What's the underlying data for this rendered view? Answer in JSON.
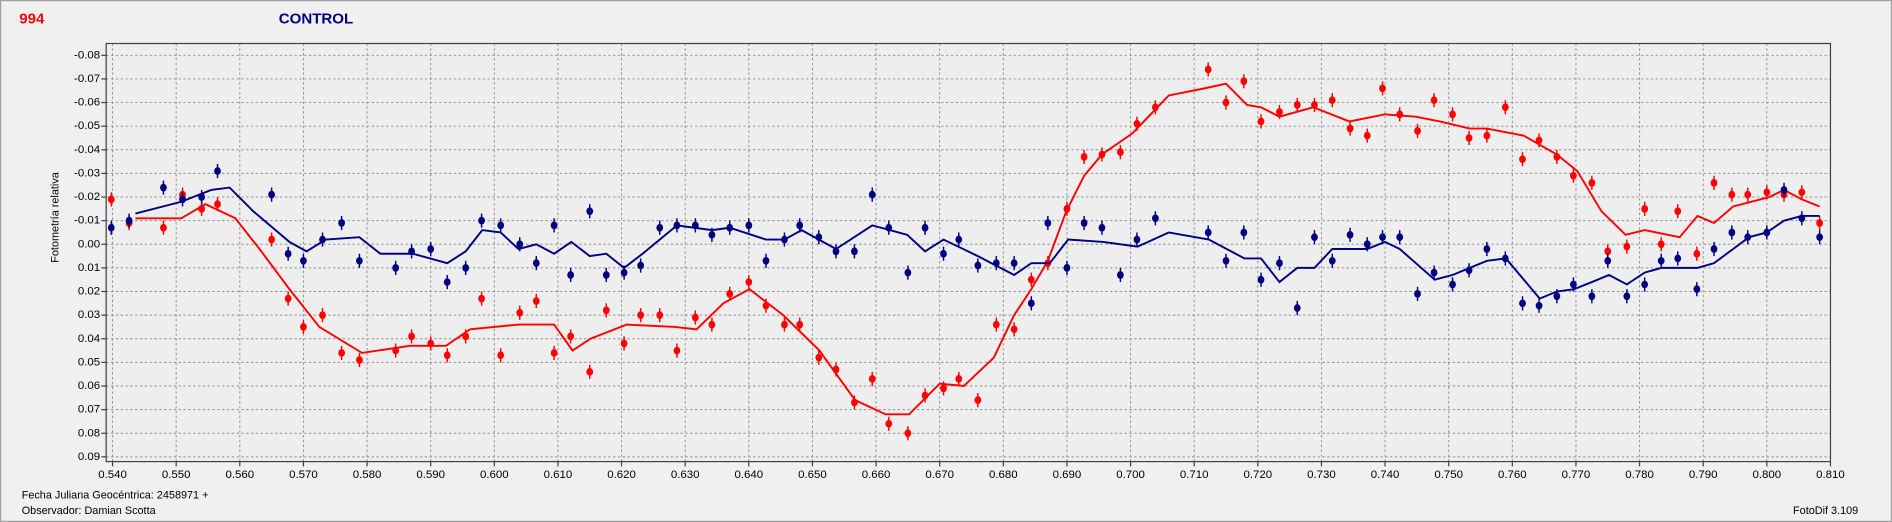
{
  "chart_data": {
    "type": "scatter",
    "title": "994",
    "subtitle": "CONTROL",
    "ylabel": "Fotometría relativa",
    "footer_left": [
      "Fecha Juliana Geocéntrica: 2458971 +",
      "Observador: Damian Scotta"
    ],
    "footer_right": "FotoDif 3.109",
    "y_inverted": true,
    "grid": true,
    "xlim": [
      0.539,
      0.81
    ],
    "ylim": [
      -0.085,
      0.092
    ],
    "xticks": [
      {
        "value": 0.54,
        "label": "0.540"
      },
      {
        "value": 0.55,
        "label": "0.550"
      },
      {
        "value": 0.56,
        "label": "0.560"
      },
      {
        "value": 0.57,
        "label": "0.570"
      },
      {
        "value": 0.58,
        "label": "0.580"
      },
      {
        "value": 0.59,
        "label": "0.590"
      },
      {
        "value": 0.6,
        "label": "0.600"
      },
      {
        "value": 0.61,
        "label": "0.610"
      },
      {
        "value": 0.62,
        "label": "0.620"
      },
      {
        "value": 0.63,
        "label": "0.630"
      },
      {
        "value": 0.64,
        "label": "0.640"
      },
      {
        "value": 0.65,
        "label": "0.650"
      },
      {
        "value": 0.66,
        "label": "0.660"
      },
      {
        "value": 0.67,
        "label": "0.670"
      },
      {
        "value": 0.68,
        "label": "0.680"
      },
      {
        "value": 0.69,
        "label": "0.690"
      },
      {
        "value": 0.7,
        "label": "0.700"
      },
      {
        "value": 0.71,
        "label": "0.710"
      },
      {
        "value": 0.72,
        "label": "0.720"
      },
      {
        "value": 0.73,
        "label": "0.730"
      },
      {
        "value": 0.74,
        "label": "0.740"
      },
      {
        "value": 0.75,
        "label": "0.750"
      },
      {
        "value": 0.76,
        "label": "0.760"
      },
      {
        "value": 0.77,
        "label": "0.770"
      },
      {
        "value": 0.78,
        "label": "0.780"
      },
      {
        "value": 0.79,
        "label": "0.790"
      },
      {
        "value": 0.8,
        "label": "0.800"
      },
      {
        "value": 0.81,
        "label": "0.810"
      }
    ],
    "yticks": [
      -0.08,
      -0.07,
      -0.06,
      -0.05,
      -0.04,
      -0.03,
      -0.02,
      -0.01,
      {
        "value": 0,
        "label": "0.00"
      },
      0.01,
      0.02,
      0.03,
      0.04,
      0.05,
      0.06,
      0.07,
      0.08,
      0.09
    ],
    "x": [
      0.5398,
      0.5426,
      0.548,
      0.551,
      0.554,
      0.5565,
      0.565,
      0.5676,
      0.57,
      0.573,
      0.576,
      0.5788,
      0.5845,
      0.587,
      0.59,
      0.5926,
      0.5955,
      0.598,
      0.601,
      0.604,
      0.6066,
      0.6094,
      0.612,
      0.615,
      0.6176,
      0.6204,
      0.623,
      0.626,
      0.6287,
      0.6316,
      0.6342,
      0.637,
      0.64,
      0.6427,
      0.6456,
      0.648,
      0.651,
      0.6537,
      0.6566,
      0.6594,
      0.662,
      0.665,
      0.6677,
      0.6706,
      0.673,
      0.676,
      0.6789,
      0.6817,
      0.6844,
      0.687,
      0.69,
      0.6927,
      0.6955,
      0.6984,
      0.701,
      0.7039,
      0.7122,
      0.715,
      0.7178,
      0.7205,
      0.7234,
      0.7262,
      0.7289,
      0.7317,
      0.7345,
      0.7372,
      0.7396,
      0.7423,
      0.7451,
      0.7477,
      0.7506,
      0.7532,
      0.756,
      0.7589,
      0.7616,
      0.7642,
      0.767,
      0.7696,
      0.7725,
      0.775,
      0.778,
      0.7808,
      0.7834,
      0.786,
      0.789,
      0.7917,
      0.7945,
      0.797,
      0.8,
      0.8027,
      0.8055,
      0.8083
    ],
    "series": [
      {
        "color": "#ff0000",
        "error": 0.003,
        "values": [
          -0.019,
          -0.009,
          -0.007,
          -0.021,
          -0.015,
          -0.017,
          -0.002,
          0.023,
          0.035,
          0.03,
          0.046,
          0.049,
          0.045,
          0.039,
          0.042,
          0.047,
          0.039,
          0.023,
          0.047,
          0.029,
          0.024,
          0.046,
          0.039,
          0.054,
          0.028,
          0.042,
          0.03,
          0.03,
          0.045,
          0.031,
          0.034,
          0.021,
          0.016,
          0.026,
          0.034,
          0.034,
          0.048,
          0.053,
          0.067,
          0.057,
          0.076,
          0.08,
          0.064,
          0.061,
          0.057,
          0.066,
          0.034,
          0.036,
          0.015,
          0.008,
          -0.015,
          -0.037,
          -0.038,
          -0.039,
          -0.051,
          -0.058,
          -0.074,
          -0.06,
          -0.069,
          -0.052,
          -0.056,
          -0.059,
          -0.059,
          -0.061,
          -0.049,
          -0.046,
          -0.066,
          -0.055,
          -0.048,
          -0.061,
          -0.055,
          -0.045,
          -0.046,
          -0.058,
          -0.036,
          -0.044,
          -0.037,
          -0.029,
          -0.026,
          0.003,
          0.001,
          -0.015,
          0.0,
          -0.014,
          0.004,
          -0.026,
          -0.021,
          -0.021,
          -0.022,
          -0.021,
          -0.022,
          -0.009
        ],
        "trend_x": [
          0.5436,
          0.5508,
          0.5546,
          0.5593,
          0.5631,
          0.5678,
          0.5725,
          0.5792,
          0.5867,
          0.5924,
          0.5962,
          0.6038,
          0.6094,
          0.6123,
          0.6151,
          0.6208,
          0.6284,
          0.6318,
          0.636,
          0.6401,
          0.6454,
          0.6511,
          0.6567,
          0.6615,
          0.6652,
          0.67,
          0.6738,
          0.6785,
          0.6817,
          0.6844,
          0.687,
          0.6899,
          0.6927,
          0.6955,
          0.7003,
          0.706,
          0.7116,
          0.715,
          0.7183,
          0.7205,
          0.7234,
          0.7287,
          0.7344,
          0.74,
          0.7448,
          0.7486,
          0.7533,
          0.756,
          0.7618,
          0.767,
          0.7702,
          0.774,
          0.7778,
          0.7808,
          0.7863,
          0.7891,
          0.7917,
          0.7947,
          0.8004,
          0.8027,
          0.8055,
          0.8083
        ],
        "trend": [
          -0.011,
          -0.011,
          -0.017,
          -0.011,
          0.002,
          0.019,
          0.035,
          0.046,
          0.043,
          0.043,
          0.036,
          0.034,
          0.034,
          0.045,
          0.04,
          0.034,
          0.035,
          0.036,
          0.025,
          0.019,
          0.03,
          0.045,
          0.066,
          0.072,
          0.072,
          0.059,
          0.06,
          0.048,
          0.03,
          0.019,
          0.007,
          -0.014,
          -0.029,
          -0.038,
          -0.047,
          -0.063,
          -0.066,
          -0.068,
          -0.059,
          -0.058,
          -0.054,
          -0.058,
          -0.052,
          -0.055,
          -0.054,
          -0.052,
          -0.049,
          -0.049,
          -0.046,
          -0.038,
          -0.031,
          -0.014,
          -0.004,
          -0.006,
          -0.003,
          -0.012,
          -0.009,
          -0.016,
          -0.02,
          -0.023,
          -0.019,
          -0.016
        ]
      },
      {
        "color": "#000080",
        "error": 0.003,
        "values": [
          -0.007,
          -0.01,
          -0.024,
          -0.019,
          -0.02,
          -0.031,
          -0.021,
          0.004,
          0.007,
          -0.002,
          -0.009,
          0.007,
          0.01,
          0.003,
          0.002,
          0.016,
          0.01,
          -0.01,
          -0.008,
          0.0,
          0.008,
          -0.008,
          0.013,
          -0.014,
          0.013,
          0.012,
          0.009,
          -0.007,
          -0.008,
          -0.008,
          -0.004,
          -0.007,
          -0.008,
          0.007,
          -0.002,
          -0.008,
          -0.003,
          0.003,
          0.003,
          -0.021,
          -0.007,
          0.012,
          -0.007,
          0.004,
          -0.002,
          0.009,
          0.008,
          0.008,
          0.025,
          -0.009,
          0.01,
          -0.009,
          -0.007,
          0.013,
          -0.002,
          -0.011,
          -0.005,
          0.007,
          -0.005,
          0.015,
          0.008,
          0.027,
          -0.003,
          0.007,
          -0.004,
          0.0,
          -0.003,
          -0.003,
          0.021,
          0.012,
          0.017,
          0.011,
          0.002,
          0.006,
          0.025,
          0.026,
          0.022,
          0.017,
          0.022,
          0.007,
          0.022,
          0.017,
          0.007,
          0.006,
          0.019,
          0.002,
          -0.005,
          -0.003,
          -0.005,
          -0.023,
          -0.011,
          -0.003
        ],
        "trend_x": [
          0.5436,
          0.5508,
          0.5555,
          0.5584,
          0.5621,
          0.5678,
          0.5705,
          0.5735,
          0.5788,
          0.5821,
          0.5872,
          0.5926,
          0.5955,
          0.5981,
          0.601,
          0.6038,
          0.6066,
          0.6094,
          0.6121,
          0.615,
          0.6176,
          0.6204,
          0.6233,
          0.6287,
          0.6342,
          0.637,
          0.6427,
          0.6456,
          0.6483,
          0.6537,
          0.6594,
          0.6649,
          0.6677,
          0.6706,
          0.676,
          0.6817,
          0.6844,
          0.6873,
          0.6902,
          0.6957,
          0.7011,
          0.706,
          0.7123,
          0.7179,
          0.7205,
          0.7234,
          0.7262,
          0.7289,
          0.7317,
          0.7372,
          0.74,
          0.7423,
          0.7478,
          0.7506,
          0.756,
          0.759,
          0.7643,
          0.767,
          0.7697,
          0.7725,
          0.7752,
          0.778,
          0.7808,
          0.7834,
          0.7891,
          0.7917,
          0.7947,
          0.7972,
          0.8,
          0.8027,
          0.8055,
          0.8083
        ],
        "trend": [
          -0.013,
          -0.018,
          -0.023,
          -0.024,
          -0.014,
          -0.001,
          0.003,
          -0.002,
          -0.003,
          0.004,
          0.004,
          0.008,
          0.003,
          -0.006,
          -0.005,
          0.002,
          0.0,
          0.004,
          -0.001,
          0.005,
          0.004,
          0.01,
          0.004,
          -0.008,
          -0.006,
          -0.007,
          -0.002,
          -0.002,
          -0.006,
          0.002,
          -0.008,
          -0.004,
          0.003,
          -0.002,
          0.005,
          0.013,
          0.008,
          0.008,
          -0.002,
          -0.001,
          0.001,
          -0.005,
          -0.002,
          0.006,
          0.006,
          0.016,
          0.01,
          0.01,
          0.002,
          0.002,
          -0.001,
          0.002,
          0.015,
          0.013,
          0.007,
          0.006,
          0.023,
          0.02,
          0.019,
          0.016,
          0.013,
          0.017,
          0.012,
          0.01,
          0.01,
          0.008,
          0.002,
          -0.003,
          -0.005,
          -0.01,
          -0.012,
          -0.012
        ]
      }
    ]
  }
}
